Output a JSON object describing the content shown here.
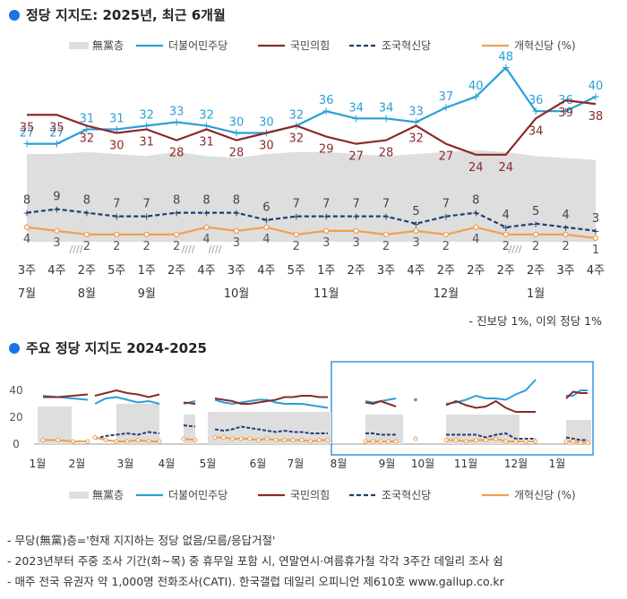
{
  "header": {
    "top_title": "정당 지지도: 2025년, 최근 6개월",
    "bottom_title": "주요 정당 지지도 2024-2025",
    "dot_color": "#1a73e8"
  },
  "legend": {
    "items": [
      {
        "label": "無黨층",
        "color": "#dedede",
        "kind": "area"
      },
      {
        "label": "더불어민주당",
        "color": "#2a9fd8",
        "kind": "line"
      },
      {
        "label": "국민의힘",
        "color": "#8a2a2a",
        "kind": "line"
      },
      {
        "label": "조국혁신당",
        "color": "#1f3f73",
        "kind": "dash"
      },
      {
        "label": "개혁신당 (%)",
        "color": "#f0a050",
        "kind": "line"
      }
    ]
  },
  "colors": {
    "dem": "#2a9fd8",
    "ppp": "#8a2a2a",
    "rebuild": "#1f3f73",
    "reform": "#f0a050",
    "nonparty": "#dedede",
    "highlight": "#3a95d8"
  },
  "chart_data": [
    {
      "type": "line",
      "title": "정당 지지도: 2025년, 최근 6개월",
      "x_week": [
        "3주",
        "4주",
        "2주",
        "5주",
        "1주",
        "2주",
        "4주",
        "3주",
        "4주",
        "5주",
        "1주",
        "2주",
        "3주",
        "4주",
        "2주",
        "2주",
        "2주",
        "2주",
        "3주",
        "4주"
      ],
      "x_month": [
        "7월",
        "",
        "8월",
        "",
        "9월",
        "",
        "",
        "10월",
        "",
        "",
        "11월",
        "",
        "",
        "",
        "12월",
        "",
        "",
        "1월",
        "",
        ""
      ],
      "series": [
        {
          "name": "더불어민주당",
          "values": [
            27,
            27,
            31,
            31,
            32,
            33,
            32,
            30,
            30,
            32,
            36,
            34,
            34,
            33,
            37,
            40,
            48,
            36,
            36,
            40
          ]
        },
        {
          "name": "국민의힘",
          "values": [
            35,
            35,
            32,
            30,
            31,
            28,
            31,
            28,
            30,
            32,
            29,
            27,
            28,
            32,
            27,
            24,
            24,
            34,
            39,
            38
          ]
        },
        {
          "name": "조국혁신당",
          "values": [
            8,
            9,
            8,
            7,
            7,
            8,
            8,
            8,
            6,
            7,
            7,
            7,
            7,
            5,
            7,
            8,
            4,
            5,
            4,
            3
          ]
        },
        {
          "name": "개혁신당",
          "values": [
            4,
            3,
            2,
            2,
            2,
            2,
            4,
            3,
            4,
            2,
            3,
            3,
            2,
            3,
            2,
            4,
            2,
            2,
            2,
            1
          ]
        }
      ],
      "nonparty_label": "無黨층",
      "note": "- 진보당 1%, 이외 정당 1%"
    },
    {
      "type": "line",
      "title": "주요 정당 지지도 2024-2025",
      "y_ticks": [
        0,
        20,
        40
      ],
      "ylim": [
        0,
        50
      ],
      "x_months": [
        "1월",
        "2월",
        "3월",
        "4월",
        "5월",
        "6월",
        "7월",
        "8월",
        "9월",
        "10월",
        "11월",
        "12월",
        "1월"
      ],
      "segments": [
        {
          "dem": [
            36,
            35,
            34,
            33
          ],
          "ppp": [
            35,
            35,
            36,
            37
          ],
          "rebuild": null,
          "reform": [
            3,
            3,
            2,
            2
          ]
        },
        {
          "dem": [
            30,
            34,
            35,
            33,
            31,
            32,
            30
          ],
          "ppp": [
            36,
            38,
            40,
            38,
            37,
            35,
            37
          ],
          "rebuild": [
            4,
            6,
            7,
            8,
            7,
            9,
            8
          ],
          "reform": [
            5,
            3,
            2,
            2,
            3,
            2,
            2
          ]
        },
        {
          "dem": [
            30,
            32
          ],
          "ppp": [
            31,
            30
          ],
          "rebuild": [
            14,
            13
          ],
          "reform": [
            4,
            3
          ]
        },
        {
          "dem": [
            33,
            31,
            30,
            31,
            32,
            33,
            33,
            31,
            30,
            30,
            30,
            29,
            28,
            27
          ],
          "ppp": [
            34,
            33,
            32,
            30,
            30,
            31,
            32,
            33,
            35,
            35,
            36,
            36,
            35,
            35
          ],
          "rebuild": [
            11,
            10,
            11,
            13,
            12,
            11,
            10,
            9,
            10,
            9,
            9,
            8,
            8,
            8
          ],
          "reform": [
            5,
            5,
            4,
            4,
            4,
            3,
            4,
            3,
            3,
            3,
            3,
            2,
            3,
            3
          ]
        },
        {
          "dem": [
            32,
            31,
            32,
            33,
            34
          ],
          "ppp": [
            31,
            30,
            32,
            30,
            28
          ],
          "rebuild": [
            8,
            8,
            7,
            7,
            7
          ],
          "reform": [
            2,
            2,
            2,
            2,
            2
          ]
        },
        {
          "dem": [
            33
          ],
          "ppp": null,
          "rebuild": null,
          "reform": [
            4
          ]
        },
        {
          "dem": [
            30,
            31,
            33,
            36,
            34,
            34,
            33,
            37,
            40,
            48
          ],
          "ppp": [
            29,
            32,
            29,
            27,
            28,
            32,
            27,
            24,
            24,
            24
          ],
          "rebuild": [
            7,
            7,
            7,
            7,
            5,
            7,
            8,
            4,
            4,
            4
          ],
          "reform": [
            3,
            3,
            2,
            3,
            3,
            4,
            2,
            2,
            2,
            2
          ]
        },
        {
          "dem": [
            36,
            36,
            40,
            40
          ],
          "ppp": [
            34,
            39,
            38,
            38
          ],
          "rebuild": [
            5,
            4,
            3,
            3
          ],
          "reform": [
            2,
            2,
            1,
            1
          ]
        }
      ],
      "note_lines": [
        "- 무당(無黨)층='현재 지지하는 정당 없음/모름/응답거절'",
        "- 2023년부터 주중 조사 기간(화~목) 중 휴무일 포함 시, 연말연시·여름휴가철 각각 3주간 데일리 조사 쉼",
        "- 매주 전국 유권자 약 1,000명 전화조사(CATI). 한국갤럽 데일리 오피니언 제610호 www.gallup.co.kr"
      ]
    }
  ]
}
